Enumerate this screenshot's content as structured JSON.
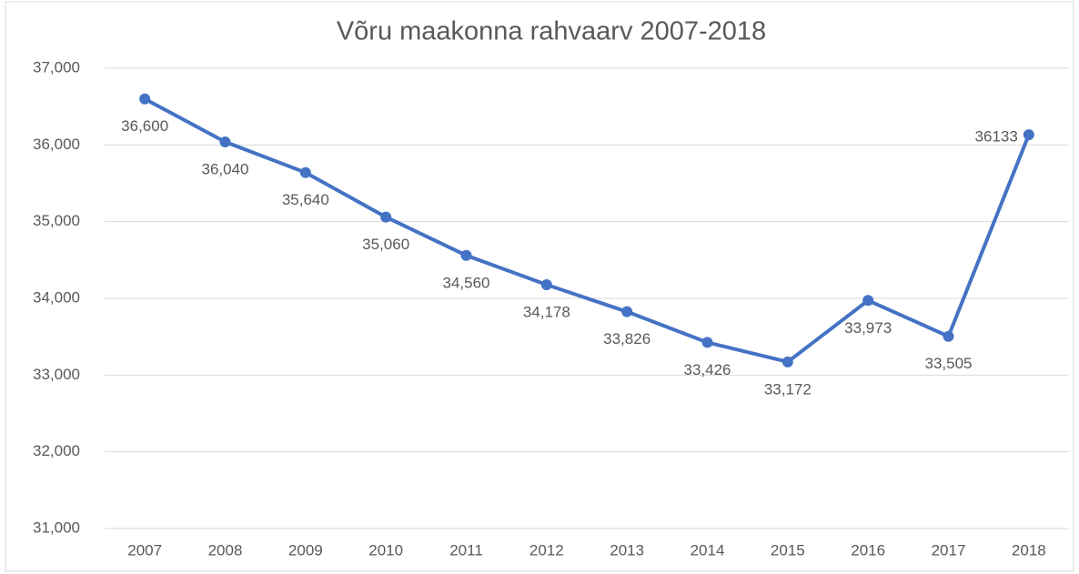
{
  "chart_data": {
    "type": "line",
    "title": "Võru maakonna rahvaarv 2007-2018",
    "categories": [
      "2007",
      "2008",
      "2009",
      "2010",
      "2011",
      "2012",
      "2013",
      "2014",
      "2015",
      "2016",
      "2017",
      "2018"
    ],
    "series": [
      {
        "color": "#4472c4",
        "values": [
          36600,
          36040,
          35640,
          35060,
          34560,
          34178,
          33826,
          33426,
          33172,
          33973,
          33505,
          36133
        ],
        "value_labels": [
          "36,600",
          "36,040",
          "35,640",
          "35,060",
          "34,560",
          "34,178",
          "33,826",
          "33,426",
          "33,172",
          "33,973",
          "33,505",
          "36133"
        ]
      }
    ],
    "ylim": [
      31000,
      37000
    ],
    "yticks": [
      {
        "value": 31000,
        "label": "31,000"
      },
      {
        "value": 32000,
        "label": "32,000"
      },
      {
        "value": 33000,
        "label": "33,000"
      },
      {
        "value": 34000,
        "label": "34,000"
      },
      {
        "value": 35000,
        "label": "35,000"
      },
      {
        "value": 36000,
        "label": "36,000"
      },
      {
        "value": 37000,
        "label": "37,000"
      }
    ],
    "grid": true
  }
}
